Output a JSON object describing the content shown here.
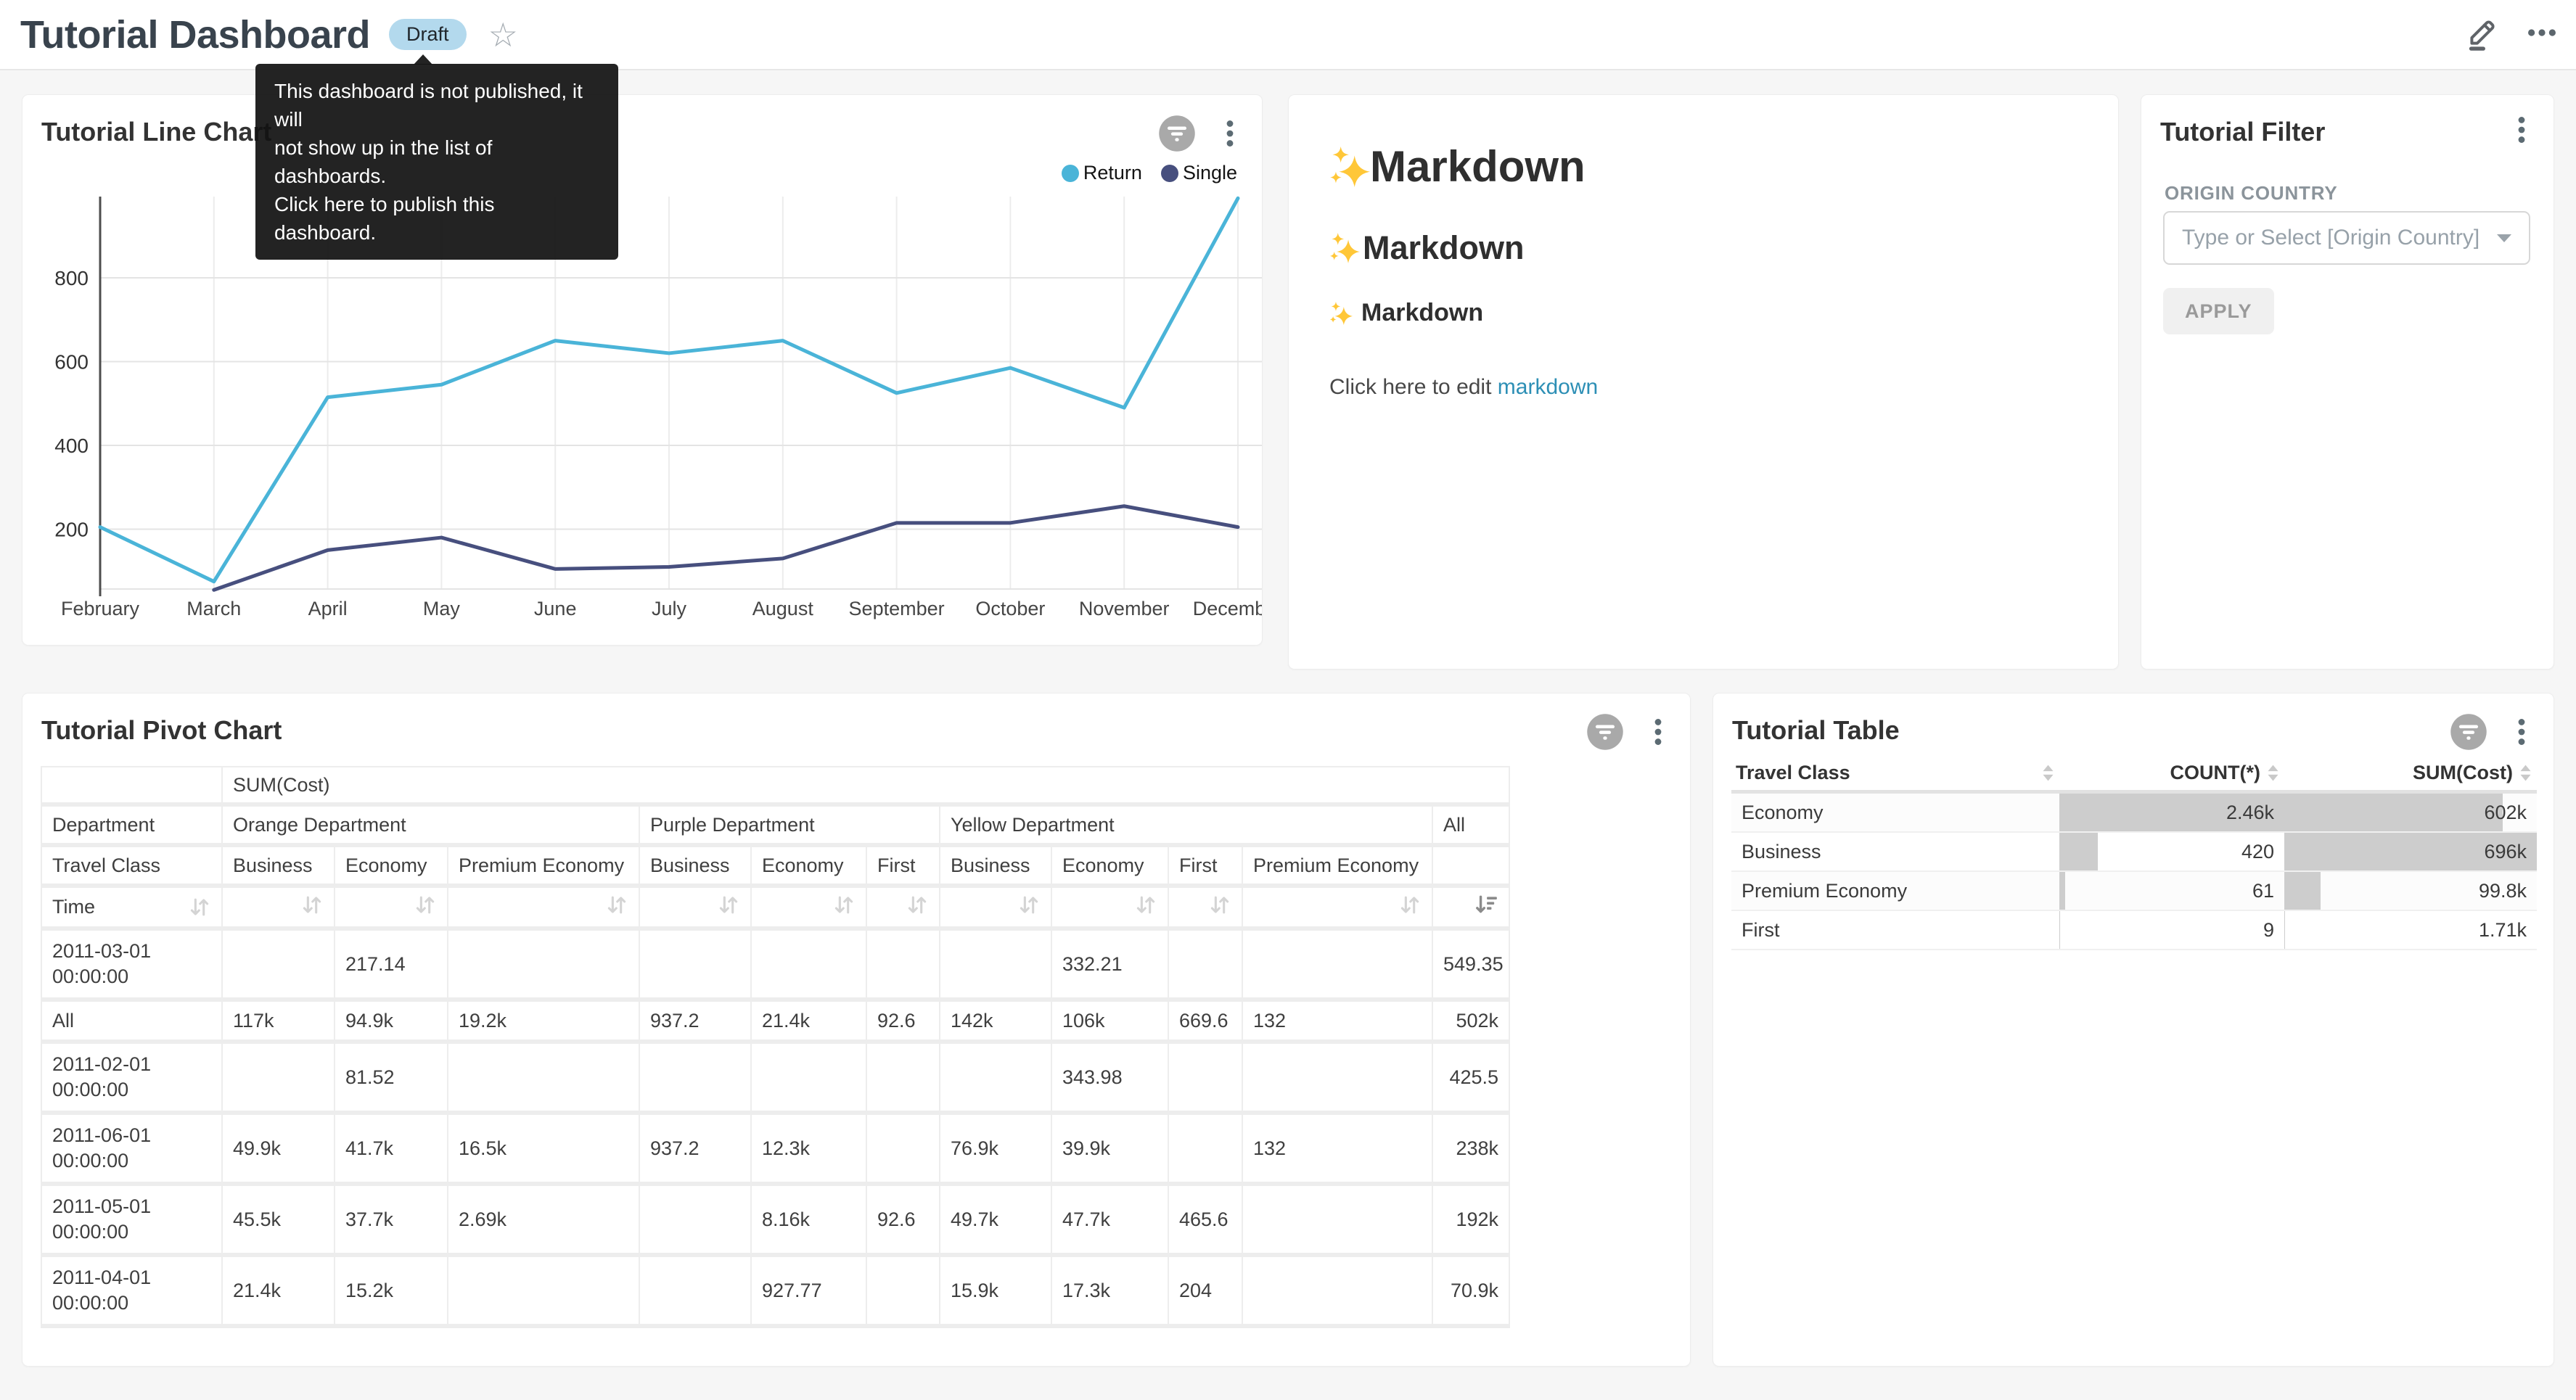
{
  "header": {
    "title": "Tutorial Dashboard",
    "badge": "Draft",
    "tooltip_lines": [
      "This dashboard is not published, it will",
      "not show up in the list of dashboards.",
      "Click here to publish this dashboard."
    ]
  },
  "line_card": {
    "title": "Tutorial Line Chart"
  },
  "chart_data": {
    "type": "line",
    "title": "Tutorial Line Chart",
    "x": [
      "February",
      "March",
      "April",
      "May",
      "June",
      "July",
      "August",
      "September",
      "October",
      "November",
      "December"
    ],
    "series": [
      {
        "name": "Return",
        "color": "#4AB4D8",
        "values": [
          205,
          75,
          515,
          545,
          650,
          620,
          650,
          525,
          585,
          490,
          990
        ]
      },
      {
        "name": "Single",
        "color": "#474F7E",
        "values": [
          null,
          55,
          150,
          180,
          105,
          110,
          130,
          215,
          215,
          255,
          205
        ]
      }
    ],
    "ylim": [
      0,
      1000
    ],
    "yticks": [
      200,
      400,
      600,
      800
    ],
    "grid": true,
    "legend_position": "top-right"
  },
  "markdown_card": {
    "h1": "Markdown",
    "h2": "Markdown",
    "h3": "Markdown",
    "paragraph_prefix": "Click here to edit ",
    "link_text": "markdown"
  },
  "filter_card": {
    "title": "Tutorial Filter",
    "field_label": "ORIGIN COUNTRY",
    "select_placeholder": "Type or Select [Origin Country]",
    "apply_label": "APPLY"
  },
  "pivot_card": {
    "title": "Tutorial Pivot Chart",
    "measure_label": "SUM(Cost)",
    "dim_label": "Department",
    "class_label": "Travel Class",
    "time_label": "Time",
    "sorted_column": "All",
    "col_groups": [
      {
        "label": "Orange Department",
        "children": [
          "Business",
          "Economy",
          "Premium Economy"
        ]
      },
      {
        "label": "Purple Department",
        "children": [
          "Business",
          "Economy",
          "First"
        ]
      },
      {
        "label": "Yellow Department",
        "children": [
          "Business",
          "Economy",
          "First",
          "Premium Economy"
        ]
      },
      {
        "label": "All",
        "children": [
          ""
        ]
      }
    ],
    "rows": [
      {
        "label": "2011-03-01 00:00:00",
        "values": [
          "",
          "217.14",
          "",
          "",
          "",
          "",
          "",
          "332.21",
          "",
          "",
          "549.35"
        ]
      },
      {
        "label": "All",
        "values": [
          "117k",
          "94.9k",
          "19.2k",
          "937.2",
          "21.4k",
          "92.6",
          "142k",
          "106k",
          "669.6",
          "132",
          "502k"
        ]
      },
      {
        "label": "2011-02-01 00:00:00",
        "values": [
          "",
          "81.52",
          "",
          "",
          "",
          "",
          "",
          "343.98",
          "",
          "",
          "425.5"
        ]
      },
      {
        "label": "2011-06-01 00:00:00",
        "values": [
          "49.9k",
          "41.7k",
          "16.5k",
          "937.2",
          "12.3k",
          "",
          "76.9k",
          "39.9k",
          "",
          "132",
          "238k"
        ]
      },
      {
        "label": "2011-05-01 00:00:00",
        "values": [
          "45.5k",
          "37.7k",
          "2.69k",
          "",
          "8.16k",
          "92.6",
          "49.7k",
          "47.7k",
          "465.6",
          "",
          "192k"
        ]
      },
      {
        "label": "2011-04-01 00:00:00",
        "values": [
          "21.4k",
          "15.2k",
          "",
          "",
          "927.77",
          "",
          "15.9k",
          "17.3k",
          "204",
          "",
          "70.9k"
        ]
      }
    ]
  },
  "table_card": {
    "title": "Tutorial Table",
    "columns": [
      {
        "label": "Travel Class",
        "align": "left"
      },
      {
        "label": "COUNT(*)",
        "align": "right"
      },
      {
        "label": "SUM(Cost)",
        "align": "right"
      }
    ],
    "rows": [
      {
        "cells": [
          "Economy",
          "2.46k",
          "602k"
        ],
        "bars": [
          null,
          1.0,
          0.865
        ]
      },
      {
        "cells": [
          "Business",
          "420",
          "696k"
        ],
        "bars": [
          null,
          0.171,
          1.0
        ]
      },
      {
        "cells": [
          "Premium Economy",
          "61",
          "99.8k"
        ],
        "bars": [
          null,
          0.025,
          0.143
        ]
      },
      {
        "cells": [
          "First",
          "9",
          "1.71k"
        ],
        "bars": [
          null,
          0.0037,
          0.0025
        ]
      }
    ]
  }
}
